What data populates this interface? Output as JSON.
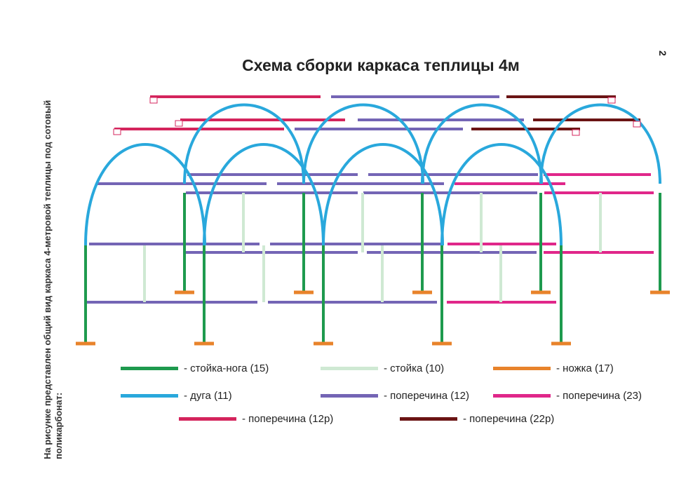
{
  "title": "Схема сборки каркаса теплицы 4м",
  "page_number": "2",
  "side_caption": "На рисунке представлен общий вид каркаса 4-метровой теплицы под сотовый поликарбонат:",
  "colors": {
    "stoyka_noga": "#1e9a4e",
    "stoyka": "#cfe9d3",
    "nozhka": "#e8832b",
    "duga": "#29a8dc",
    "poperechina_12": "#7465b5",
    "poperechina_23": "#e0278a",
    "poperechina_12r": "#d4245c",
    "poperechina_22r": "#6b1414"
  },
  "legend": [
    {
      "key": "stoyka_noga",
      "label": "- стойка-нога (15)"
    },
    {
      "key": "stoyka",
      "label": "- стойка (10)"
    },
    {
      "key": "nozhka",
      "label": "- ножка (17)"
    },
    {
      "key": "duga",
      "label": "- дуга (11)"
    },
    {
      "key": "poperechina_12",
      "label": "- поперечина (12)"
    },
    {
      "key": "poperechina_23",
      "label": "- поперечина (23)"
    },
    {
      "key": "poperechina_12r",
      "label": "- поперечина (12р)"
    },
    {
      "key": "poperechina_22r",
      "label": "- поперечина (22р)"
    }
  ]
}
